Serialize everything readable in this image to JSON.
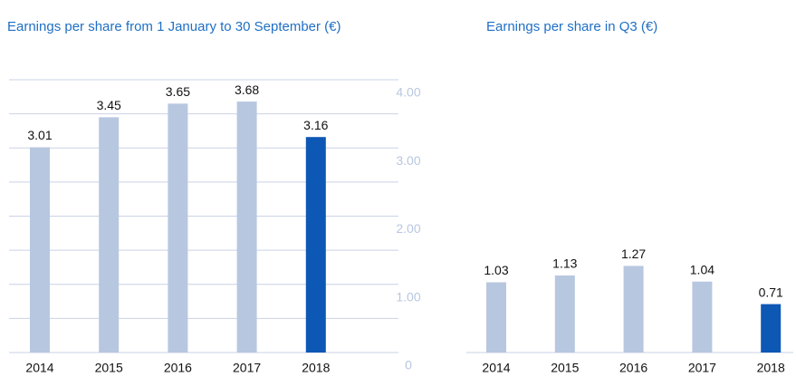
{
  "chart_data": [
    {
      "type": "bar",
      "title": "Earnings per share from 1 January to 30 September (€)",
      "categories": [
        "2014",
        "2015",
        "2016",
        "2017",
        "2018"
      ],
      "values": [
        3.01,
        3.45,
        3.65,
        3.68,
        3.16
      ],
      "colors": [
        "#b8c7e0",
        "#b8c7e0",
        "#b8c7e0",
        "#b8c7e0",
        "#0d57b5"
      ],
      "ylim": [
        0,
        4
      ],
      "yticks": [
        0,
        0.5,
        1,
        1.5,
        2,
        2.5,
        3,
        3.5,
        4
      ],
      "grid": true,
      "tick_labels": false
    },
    {
      "type": "bar",
      "title": "Earnings per share in Q3 (€)",
      "categories": [
        "2014",
        "2015",
        "2016",
        "2017",
        "2018"
      ],
      "values": [
        1.03,
        1.13,
        1.27,
        1.04,
        0.71
      ],
      "colors": [
        "#b8c7e0",
        "#b8c7e0",
        "#b8c7e0",
        "#b8c7e0",
        "#0d57b5"
      ],
      "ylim": [
        0,
        4
      ],
      "yticks": [
        0,
        {
          "value": 1,
          "label": "1.00"
        },
        {
          "value": 2,
          "label": "2.00"
        },
        {
          "value": 3,
          "label": "3.00"
        },
        {
          "value": 4,
          "label": "4.00"
        }
      ],
      "grid": false,
      "tick_labels": true
    }
  ]
}
